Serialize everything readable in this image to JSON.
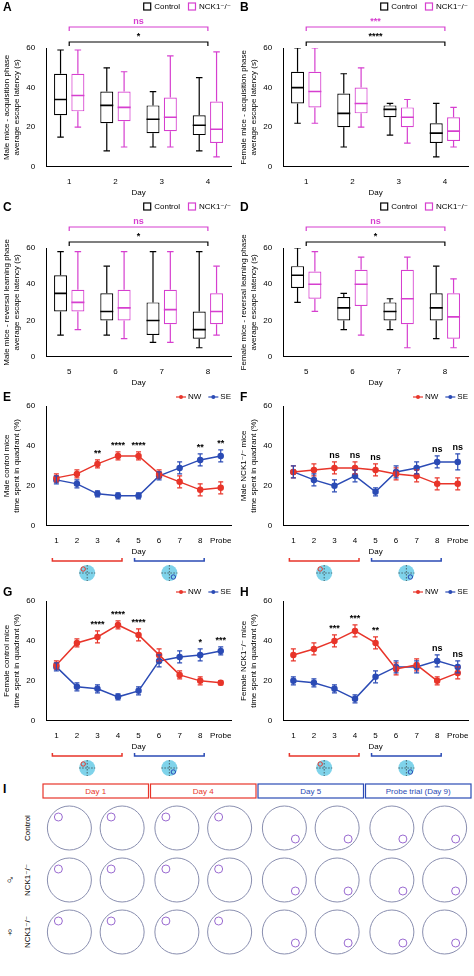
{
  "chart_data": [
    {
      "panel": "A",
      "type": "box",
      "x_label": "Day",
      "y_label": [
        "Male mice - acquisition phase",
        "average escape latency (s)"
      ],
      "categories": [
        "1",
        "2",
        "3",
        "4"
      ],
      "ylim": [
        0,
        60
      ],
      "yticks": [
        0,
        20,
        40,
        60
      ],
      "grid": false,
      "legend": "top right",
      "series": [
        {
          "name": "Control",
          "color": "#000000",
          "values": [
            {
              "min": 15,
              "q1": 26,
              "median": 34,
              "q3": 47,
              "max": 59
            },
            {
              "min": 8,
              "q1": 22,
              "median": 31,
              "q3": 38,
              "max": 50
            },
            {
              "min": 10,
              "q1": 17,
              "median": 24,
              "q3": 31,
              "max": 38
            },
            {
              "min": 8,
              "q1": 16,
              "median": 21,
              "q3": 26,
              "max": 45
            }
          ]
        },
        {
          "name": "NCK1⁻/⁻",
          "color": "#d63fcf",
          "values": [
            {
              "min": 20,
              "q1": 28,
              "median": 36,
              "q3": 47,
              "max": 59
            },
            {
              "min": 10,
              "q1": 23,
              "median": 30,
              "q3": 38,
              "max": 48
            },
            {
              "min": 10,
              "q1": 18,
              "median": 25,
              "q3": 35,
              "max": 56
            },
            {
              "min": 5,
              "q1": 12,
              "median": 19,
              "q3": 33,
              "max": 58
            }
          ]
        }
      ],
      "annotations": [
        {
          "from": "1",
          "to": "4",
          "label": "ns",
          "color": "#d63fcf"
        },
        {
          "from": "1",
          "to": "4",
          "label": "*",
          "color": "#000000"
        }
      ]
    },
    {
      "panel": "B",
      "type": "box",
      "x_label": "Day",
      "y_label": [
        "Female mice - acquisition phase",
        "average escape latency (s)"
      ],
      "categories": [
        "1",
        "2",
        "3",
        "4"
      ],
      "ylim": [
        0,
        60
      ],
      "yticks": [
        0,
        20,
        40,
        60
      ],
      "grid": false,
      "legend": "top right",
      "series": [
        {
          "name": "Control",
          "color": "#000000",
          "values": [
            {
              "min": 22,
              "q1": 32,
              "median": 40,
              "q3": 48,
              "max": 60
            },
            {
              "min": 10,
              "q1": 20,
              "median": 27,
              "q3": 37,
              "max": 47
            },
            {
              "min": 16,
              "q1": 25,
              "median": 29,
              "q3": 31,
              "max": 32
            },
            {
              "min": 5,
              "q1": 12,
              "median": 17,
              "q3": 22,
              "max": 32
            }
          ]
        },
        {
          "name": "NCK1⁻/⁻",
          "color": "#d63fcf",
          "values": [
            {
              "min": 22,
              "q1": 30,
              "median": 38,
              "q3": 48,
              "max": 60
            },
            {
              "min": 20,
              "q1": 27,
              "median": 32,
              "q3": 40,
              "max": 50
            },
            {
              "min": 12,
              "q1": 20,
              "median": 25,
              "q3": 30,
              "max": 34
            },
            {
              "min": 10,
              "q1": 13,
              "median": 18,
              "q3": 25,
              "max": 30
            }
          ]
        }
      ],
      "annotations": [
        {
          "from": "1",
          "to": "4",
          "label": "***",
          "color": "#d63fcf"
        },
        {
          "from": "1",
          "to": "4",
          "label": "****",
          "color": "#000000"
        }
      ]
    },
    {
      "panel": "C",
      "type": "box",
      "x_label": "Day",
      "y_label": [
        "Male mice - reversal learning phase",
        "average escape latency (s)"
      ],
      "categories": [
        "5",
        "6",
        "7",
        "8"
      ],
      "ylim": [
        0,
        60
      ],
      "yticks": [
        0,
        20,
        40,
        60
      ],
      "grid": false,
      "legend": "top right",
      "series": [
        {
          "name": "Control",
          "color": "#000000",
          "values": [
            {
              "min": 12,
              "q1": 25,
              "median": 35,
              "q3": 45,
              "max": 58
            },
            {
              "min": 12,
              "q1": 20,
              "median": 25,
              "q3": 35,
              "max": 50
            },
            {
              "min": 8,
              "q1": 12,
              "median": 20,
              "q3": 30,
              "max": 58
            },
            {
              "min": 5,
              "q1": 10,
              "median": 15,
              "q3": 25,
              "max": 58
            }
          ]
        },
        {
          "name": "NCK1⁻/⁻",
          "color": "#d63fcf",
          "values": [
            {
              "min": 15,
              "q1": 25,
              "median": 30,
              "q3": 37,
              "max": 58
            },
            {
              "min": 10,
              "q1": 20,
              "median": 27,
              "q3": 37,
              "max": 58
            },
            {
              "min": 8,
              "q1": 18,
              "median": 26,
              "q3": 37,
              "max": 58
            },
            {
              "min": 12,
              "q1": 18,
              "median": 25,
              "q3": 35,
              "max": 50
            }
          ]
        }
      ],
      "annotations": [
        {
          "from": "5",
          "to": "8",
          "label": "ns",
          "color": "#d63fcf"
        },
        {
          "from": "5",
          "to": "8",
          "label": "*",
          "color": "#000000"
        }
      ]
    },
    {
      "panel": "D",
      "type": "box",
      "x_label": "Day",
      "y_label": [
        "Female mice - reversal learning phase",
        "average escape latency (s)"
      ],
      "categories": [
        "5",
        "6",
        "7",
        "8"
      ],
      "ylim": [
        0,
        60
      ],
      "yticks": [
        0,
        20,
        40,
        60
      ],
      "grid": false,
      "legend": "top right",
      "series": [
        {
          "name": "Control",
          "color": "#000000",
          "values": [
            {
              "min": 30,
              "q1": 38,
              "median": 45,
              "q3": 50,
              "max": 60
            },
            {
              "min": 15,
              "q1": 20,
              "median": 27,
              "q3": 33,
              "max": 35
            },
            {
              "min": 15,
              "q1": 20,
              "median": 25,
              "q3": 30,
              "max": 32
            },
            {
              "min": 10,
              "q1": 20,
              "median": 27,
              "q3": 35,
              "max": 50
            }
          ]
        },
        {
          "name": "NCK1⁻/⁻",
          "color": "#d63fcf",
          "values": [
            {
              "min": 25,
              "q1": 32,
              "median": 40,
              "q3": 47,
              "max": 58
            },
            {
              "min": 12,
              "q1": 28,
              "median": 40,
              "q3": 48,
              "max": 55
            },
            {
              "min": 5,
              "q1": 18,
              "median": 32,
              "q3": 48,
              "max": 55
            },
            {
              "min": 5,
              "q1": 10,
              "median": 22,
              "q3": 35,
              "max": 43
            }
          ]
        }
      ],
      "annotations": [
        {
          "from": "5",
          "to": "8",
          "label": "ns",
          "color": "#d63fcf"
        },
        {
          "from": "5",
          "to": "8",
          "label": "*",
          "color": "#000000"
        }
      ]
    },
    {
      "panel": "E",
      "type": "line",
      "x_label": "Day",
      "y_label": [
        "Male control mice",
        "time spent in quadrant (%)"
      ],
      "categories": [
        "1",
        "2",
        "3",
        "4",
        "5",
        "6",
        "7",
        "8",
        "Probe"
      ],
      "ylim": [
        0,
        60
      ],
      "yticks": [
        0,
        20,
        40,
        60
      ],
      "grid": false,
      "legend": "top right",
      "series": [
        {
          "name": "NW",
          "color": "#e8352a",
          "values": [
            24,
            26,
            31,
            35,
            35,
            26,
            22,
            18,
            19
          ],
          "errors": [
            2,
            2,
            2,
            2,
            2,
            2,
            3,
            3,
            3
          ]
        },
        {
          "name": "SE",
          "color": "#2b4bb5",
          "values": [
            23,
            21,
            16,
            15,
            15,
            25,
            29,
            33,
            35
          ],
          "errors": [
            2,
            2,
            1.5,
            1.5,
            1.5,
            2,
            3,
            3,
            3
          ]
        }
      ],
      "significance": [
        null,
        null,
        "**",
        "****",
        "****",
        null,
        null,
        "**",
        "**"
      ],
      "phases": [
        {
          "from": "1",
          "to": "4",
          "color": "#e8352a",
          "quadrant": "NW"
        },
        {
          "from": "5",
          "to": "8",
          "color": "#2b4bb5",
          "quadrant": "SE"
        }
      ]
    },
    {
      "panel": "F",
      "type": "line",
      "x_label": "Day",
      "y_label": [
        "Male NCK1⁻/⁻ mice",
        "time spent in quadrant (%)"
      ],
      "categories": [
        "1",
        "2",
        "3",
        "4",
        "5",
        "6",
        "7",
        "8",
        "Probe"
      ],
      "ylim": [
        0,
        60
      ],
      "yticks": [
        0,
        20,
        40,
        60
      ],
      "grid": false,
      "legend": "top right",
      "series": [
        {
          "name": "NW",
          "color": "#e8352a",
          "values": [
            27,
            28,
            29,
            29,
            28,
            26,
            25,
            21,
            21
          ],
          "errors": [
            3,
            3,
            3,
            3,
            3,
            3,
            3,
            3,
            3
          ]
        },
        {
          "name": "SE",
          "color": "#2b4bb5",
          "values": [
            27,
            23,
            20,
            25,
            17,
            27,
            29,
            32,
            32
          ],
          "errors": [
            3,
            3,
            3,
            3,
            2,
            3,
            3,
            3,
            4
          ]
        }
      ],
      "significance": [
        null,
        null,
        "ns",
        "ns",
        "ns",
        null,
        null,
        "ns",
        "ns"
      ],
      "phases": [
        {
          "from": "1",
          "to": "4",
          "color": "#e8352a",
          "quadrant": "NW"
        },
        {
          "from": "5",
          "to": "8",
          "color": "#2b4bb5",
          "quadrant": "SE"
        }
      ]
    },
    {
      "panel": "G",
      "type": "line",
      "x_label": "Day",
      "y_label": [
        "Female control mice",
        "time spent in quadrant (%)"
      ],
      "categories": [
        "1",
        "2",
        "3",
        "4",
        "5",
        "6",
        "7",
        "8",
        "Probe"
      ],
      "ylim": [
        0,
        60
      ],
      "yticks": [
        0,
        20,
        40,
        60
      ],
      "grid": false,
      "legend": "top right",
      "series": [
        {
          "name": "NW",
          "color": "#e8352a",
          "values": [
            28,
            39,
            42,
            48,
            43,
            33,
            23,
            20,
            19
          ],
          "errors": [
            2,
            2,
            3,
            2,
            3,
            3,
            2,
            2,
            1
          ]
        },
        {
          "name": "SE",
          "color": "#2b4bb5",
          "values": [
            27,
            17,
            16,
            12,
            15,
            30,
            32,
            33,
            35
          ],
          "errors": [
            2,
            2,
            2,
            1.5,
            2,
            3,
            3,
            3,
            2
          ]
        }
      ],
      "significance": [
        null,
        null,
        "****",
        "****",
        "****",
        null,
        null,
        "*",
        "***"
      ],
      "phases": [
        {
          "from": "1",
          "to": "4",
          "color": "#e8352a",
          "quadrant": "NW"
        },
        {
          "from": "5",
          "to": "8",
          "color": "#2b4bb5",
          "quadrant": "SE"
        }
      ]
    },
    {
      "panel": "H",
      "type": "line",
      "x_label": "Day",
      "y_label": [
        "Female NCK1⁻/⁻ mice",
        "time spent in quadrant (%)"
      ],
      "categories": [
        "1",
        "2",
        "3",
        "4",
        "5",
        "6",
        "7",
        "8",
        "Probe"
      ],
      "ylim": [
        0,
        60
      ],
      "yticks": [
        0,
        20,
        40,
        60
      ],
      "grid": false,
      "legend": "top right",
      "series": [
        {
          "name": "NW",
          "color": "#e8352a",
          "values": [
            33,
            36,
            40,
            45,
            39,
            26,
            28,
            20,
            24
          ],
          "errors": [
            3,
            3,
            3,
            3,
            3,
            3,
            3,
            2,
            3
          ]
        },
        {
          "name": "SE",
          "color": "#2b4bb5",
          "values": [
            20,
            19,
            16,
            11,
            22,
            27,
            27,
            30,
            27
          ],
          "errors": [
            2,
            2,
            2,
            2,
            3,
            3,
            3,
            3,
            3
          ]
        }
      ],
      "significance": [
        null,
        null,
        "***",
        "***",
        "**",
        null,
        null,
        "ns",
        "ns"
      ],
      "phases": [
        {
          "from": "1",
          "to": "4",
          "color": "#e8352a",
          "quadrant": "NW"
        },
        {
          "from": "5",
          "to": "8",
          "color": "#2b4bb5",
          "quadrant": "SE"
        }
      ]
    }
  ],
  "tracks": {
    "panel": "I",
    "columns": [
      {
        "label": "Day 1",
        "color": "#e8352a",
        "platform": "NW"
      },
      {
        "label": "Day 4",
        "color": "#e8352a",
        "platform": "NW"
      },
      {
        "label": "Day 5",
        "color": "#2b4bb5",
        "platform": "SE"
      },
      {
        "label": "Probe trial (Day 9)",
        "color": "#2b4bb5",
        "platform": "SE"
      }
    ],
    "rows": [
      {
        "label": "Control"
      },
      {
        "label": "NCK1⁻/⁻",
        "sex": "♂"
      },
      {
        "label": "NCK1⁻/⁻",
        "sex": "♀"
      }
    ]
  }
}
